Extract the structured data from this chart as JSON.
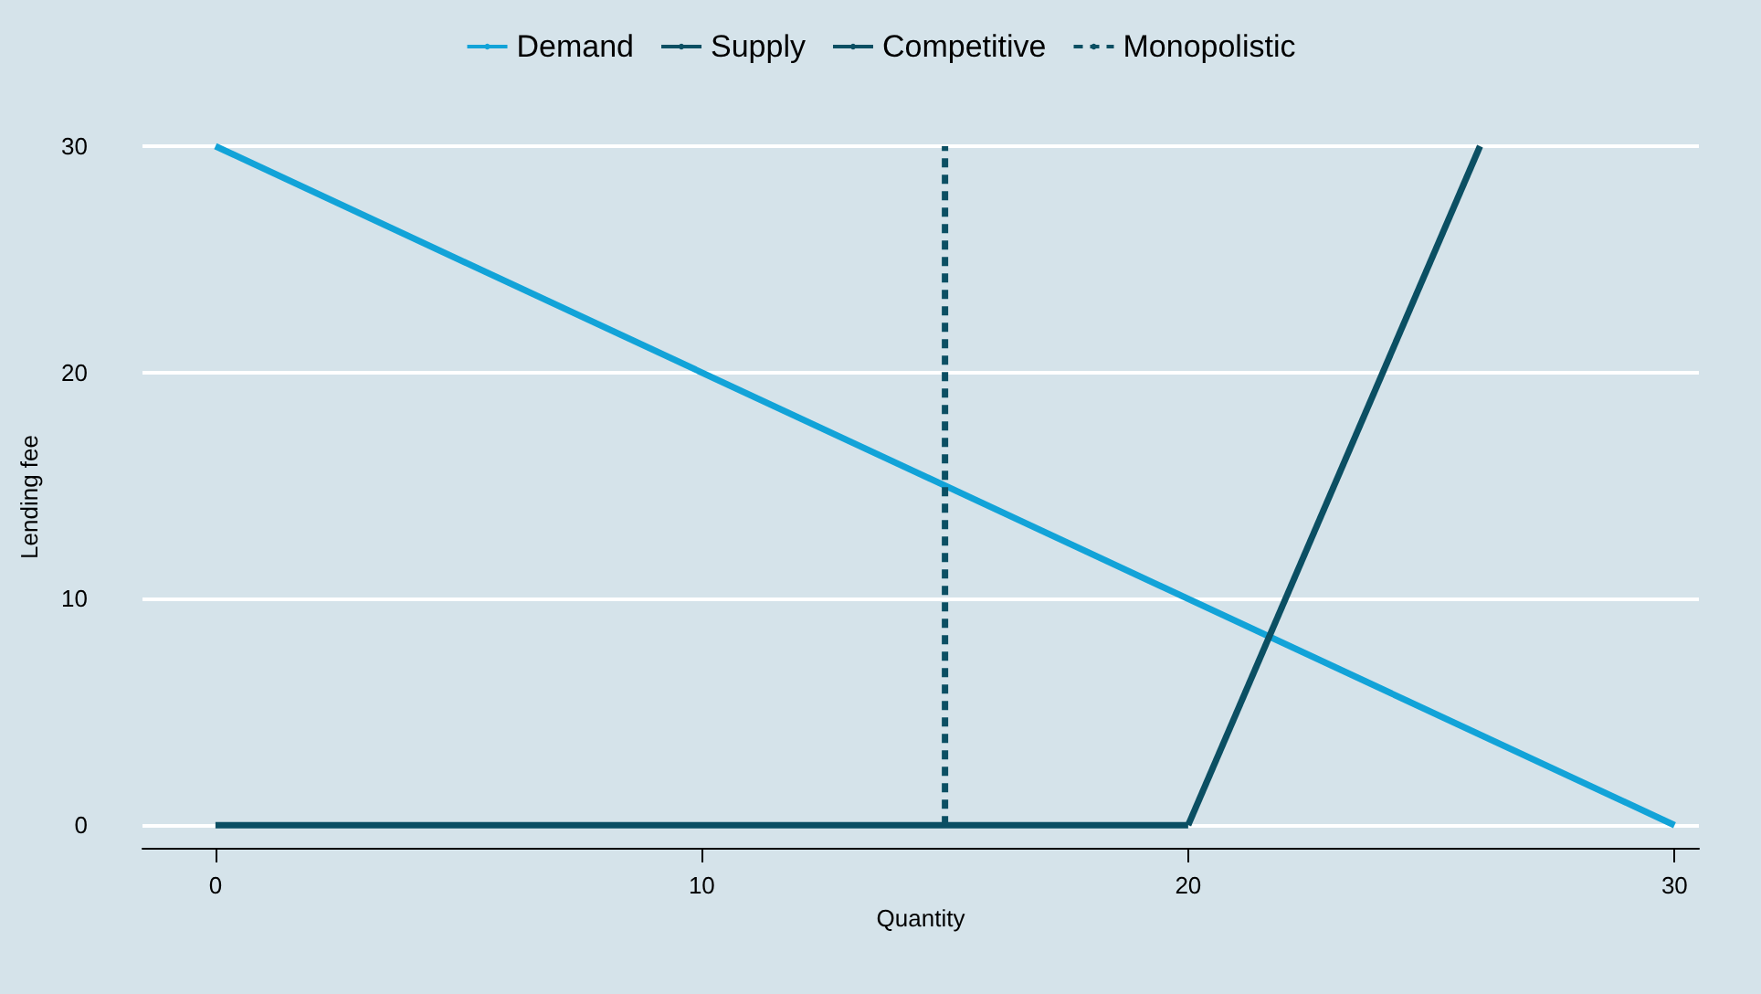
{
  "chart_data": {
    "type": "line",
    "xlabel": "Quantity",
    "ylabel": "Lending fee",
    "xlim": [
      -1.5,
      30.5
    ],
    "xticks": [
      0,
      10,
      20,
      30
    ],
    "ylim": [
      -1,
      30
    ],
    "yticks": [
      0,
      10,
      20,
      30
    ],
    "grid": "y",
    "legend": "top",
    "marker": "none",
    "series": [
      {
        "name": "Demand",
        "color": "#12a3d8",
        "x": [
          0,
          30
        ],
        "values": [
          30,
          0
        ]
      },
      {
        "name": "Supply",
        "color": "#0b4f63",
        "x": [
          0,
          20
        ],
        "values": [
          0,
          0
        ]
      },
      {
        "name": "Competitive",
        "color": "#0b4f63",
        "x": [
          20,
          26
        ],
        "values": [
          0,
          30
        ]
      },
      {
        "name": "Monopolistic",
        "color": "#0b4f63",
        "x": [
          15,
          15
        ],
        "values": [
          0,
          30
        ],
        "line_style": "dashed"
      }
    ]
  }
}
